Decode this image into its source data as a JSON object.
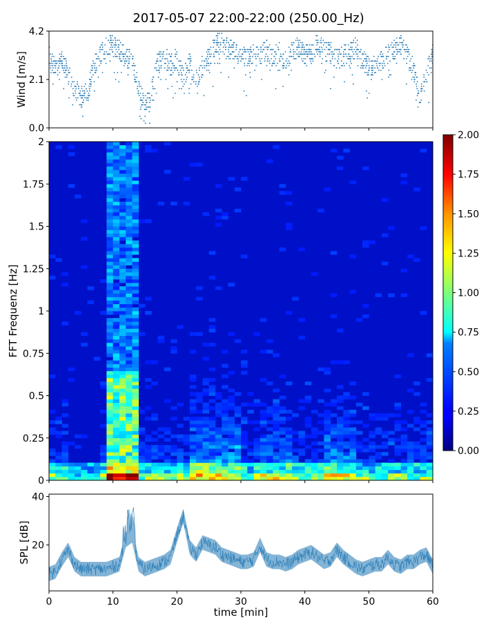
{
  "title": "2017-05-07 22:00-22:00 (250.00_Hz)",
  "chart_data": [
    {
      "id": "wind",
      "type": "scatter",
      "ylabel": "Wind [m/s]",
      "xlabel": "",
      "xlim": [
        0,
        60
      ],
      "ylim": [
        0.0,
        4.2
      ],
      "yticks": [
        0.0,
        2.1,
        4.2
      ],
      "ytick_labels": [
        "0.0",
        "2.1",
        "4.2"
      ],
      "color": "#1f77b4",
      "profile": [
        {
          "t": 0,
          "v": 3.1
        },
        {
          "t": 1,
          "v": 2.7
        },
        {
          "t": 2,
          "v": 2.9
        },
        {
          "t": 3,
          "v": 2.3
        },
        {
          "t": 4,
          "v": 1.7
        },
        {
          "t": 5,
          "v": 1.3
        },
        {
          "t": 6,
          "v": 1.5
        },
        {
          "t": 7,
          "v": 2.6
        },
        {
          "t": 8,
          "v": 3.2
        },
        {
          "t": 9,
          "v": 3.5
        },
        {
          "t": 10,
          "v": 3.6
        },
        {
          "t": 11,
          "v": 3.4
        },
        {
          "t": 12,
          "v": 3.0
        },
        {
          "t": 13,
          "v": 2.9
        },
        {
          "t": 14,
          "v": 1.8
        },
        {
          "t": 15,
          "v": 0.9
        },
        {
          "t": 16,
          "v": 1.4
        },
        {
          "t": 17,
          "v": 2.8
        },
        {
          "t": 18,
          "v": 3.0
        },
        {
          "t": 19,
          "v": 2.9
        },
        {
          "t": 20,
          "v": 3.0
        },
        {
          "t": 21,
          "v": 2.2
        },
        {
          "t": 22,
          "v": 2.8
        },
        {
          "t": 23,
          "v": 2.0
        },
        {
          "t": 24,
          "v": 2.7
        },
        {
          "t": 25,
          "v": 3.1
        },
        {
          "t": 26,
          "v": 3.6
        },
        {
          "t": 27,
          "v": 3.7
        },
        {
          "t": 28,
          "v": 3.5
        },
        {
          "t": 29,
          "v": 3.2
        },
        {
          "t": 30,
          "v": 3.3
        },
        {
          "t": 31,
          "v": 3.0
        },
        {
          "t": 32,
          "v": 3.2
        },
        {
          "t": 33,
          "v": 3.1
        },
        {
          "t": 34,
          "v": 3.4
        },
        {
          "t": 35,
          "v": 3.0
        },
        {
          "t": 36,
          "v": 3.3
        },
        {
          "t": 37,
          "v": 2.9
        },
        {
          "t": 38,
          "v": 3.4
        },
        {
          "t": 39,
          "v": 3.5
        },
        {
          "t": 40,
          "v": 3.2
        },
        {
          "t": 41,
          "v": 3.4
        },
        {
          "t": 42,
          "v": 3.6
        },
        {
          "t": 43,
          "v": 3.4
        },
        {
          "t": 44,
          "v": 3.3
        },
        {
          "t": 45,
          "v": 3.0
        },
        {
          "t": 46,
          "v": 3.1
        },
        {
          "t": 47,
          "v": 3.4
        },
        {
          "t": 48,
          "v": 3.5
        },
        {
          "t": 49,
          "v": 2.9
        },
        {
          "t": 50,
          "v": 2.6
        },
        {
          "t": 51,
          "v": 2.8
        },
        {
          "t": 52,
          "v": 2.9
        },
        {
          "t": 53,
          "v": 3.2
        },
        {
          "t": 54,
          "v": 3.4
        },
        {
          "t": 55,
          "v": 3.6
        },
        {
          "t": 56,
          "v": 3.2
        },
        {
          "t": 57,
          "v": 2.5
        },
        {
          "t": 58,
          "v": 1.2
        },
        {
          "t": 59,
          "v": 2.4
        },
        {
          "t": 60,
          "v": 3.2
        }
      ]
    },
    {
      "id": "fft",
      "type": "heatmap",
      "ylabel": "FFT Frequenz [Hz]",
      "xlabel": "",
      "xlim": [
        0,
        60
      ],
      "ylim": [
        0,
        2
      ],
      "yticks": [
        0,
        0.25,
        0.5,
        0.75,
        1,
        1.25,
        1.5,
        1.75,
        2
      ],
      "ytick_labels": [
        "0",
        "0.25",
        "0.5",
        "0.75",
        "1",
        "1.25",
        "1.5",
        "1.75",
        "2"
      ],
      "colormap": "jet",
      "colorbar": {
        "range": [
          0.0,
          2.0
        ],
        "ticks": [
          0.0,
          0.25,
          0.5,
          0.75,
          1.0,
          1.25,
          1.5,
          1.75,
          2.0
        ],
        "tick_labels": [
          "0.00",
          "0.25",
          "0.50",
          "0.75",
          "1.00",
          "1.25",
          "1.50",
          "1.75",
          "2.00"
        ]
      },
      "hot_intervals_min": [
        [
          9.5,
          13.5
        ],
        [
          22,
          30
        ],
        [
          33,
          38
        ],
        [
          43,
          48
        ]
      ]
    },
    {
      "id": "spl",
      "type": "line",
      "ylabel": "SPL [dB]",
      "xlabel": "time [min]",
      "xlim": [
        0,
        60
      ],
      "ylim": [
        1,
        41
      ],
      "yticks": [
        20,
        40
      ],
      "ytick_labels": [
        "20",
        "40"
      ],
      "xticks": [
        0,
        10,
        20,
        30,
        40,
        50,
        60
      ],
      "xtick_labels": [
        "0",
        "10",
        "20",
        "30",
        "40",
        "50",
        "60"
      ],
      "color": "#1f77b4",
      "x": [
        0,
        1,
        2,
        3,
        4,
        5,
        6,
        7,
        8,
        9,
        10,
        11,
        12,
        13,
        14,
        15,
        16,
        17,
        18,
        19,
        20,
        21,
        22,
        23,
        24,
        25,
        26,
        27,
        28,
        29,
        30,
        31,
        32,
        33,
        34,
        35,
        36,
        37,
        38,
        39,
        40,
        41,
        42,
        43,
        44,
        45,
        46,
        47,
        48,
        49,
        50,
        51,
        52,
        53,
        54,
        55,
        56,
        57,
        58,
        59,
        60
      ],
      "y": [
        8,
        9,
        14,
        18,
        12,
        10,
        10,
        10,
        10,
        10,
        11,
        12,
        22,
        24,
        12,
        10,
        11,
        12,
        13,
        15,
        24,
        32,
        19,
        16,
        21,
        20,
        19,
        16,
        15,
        14,
        13,
        13,
        14,
        20,
        14,
        13,
        13,
        12,
        13,
        15,
        16,
        17,
        15,
        13,
        14,
        18,
        15,
        13,
        11,
        10,
        11,
        12,
        12,
        15,
        12,
        11,
        13,
        13,
        15,
        16,
        11
      ]
    }
  ]
}
